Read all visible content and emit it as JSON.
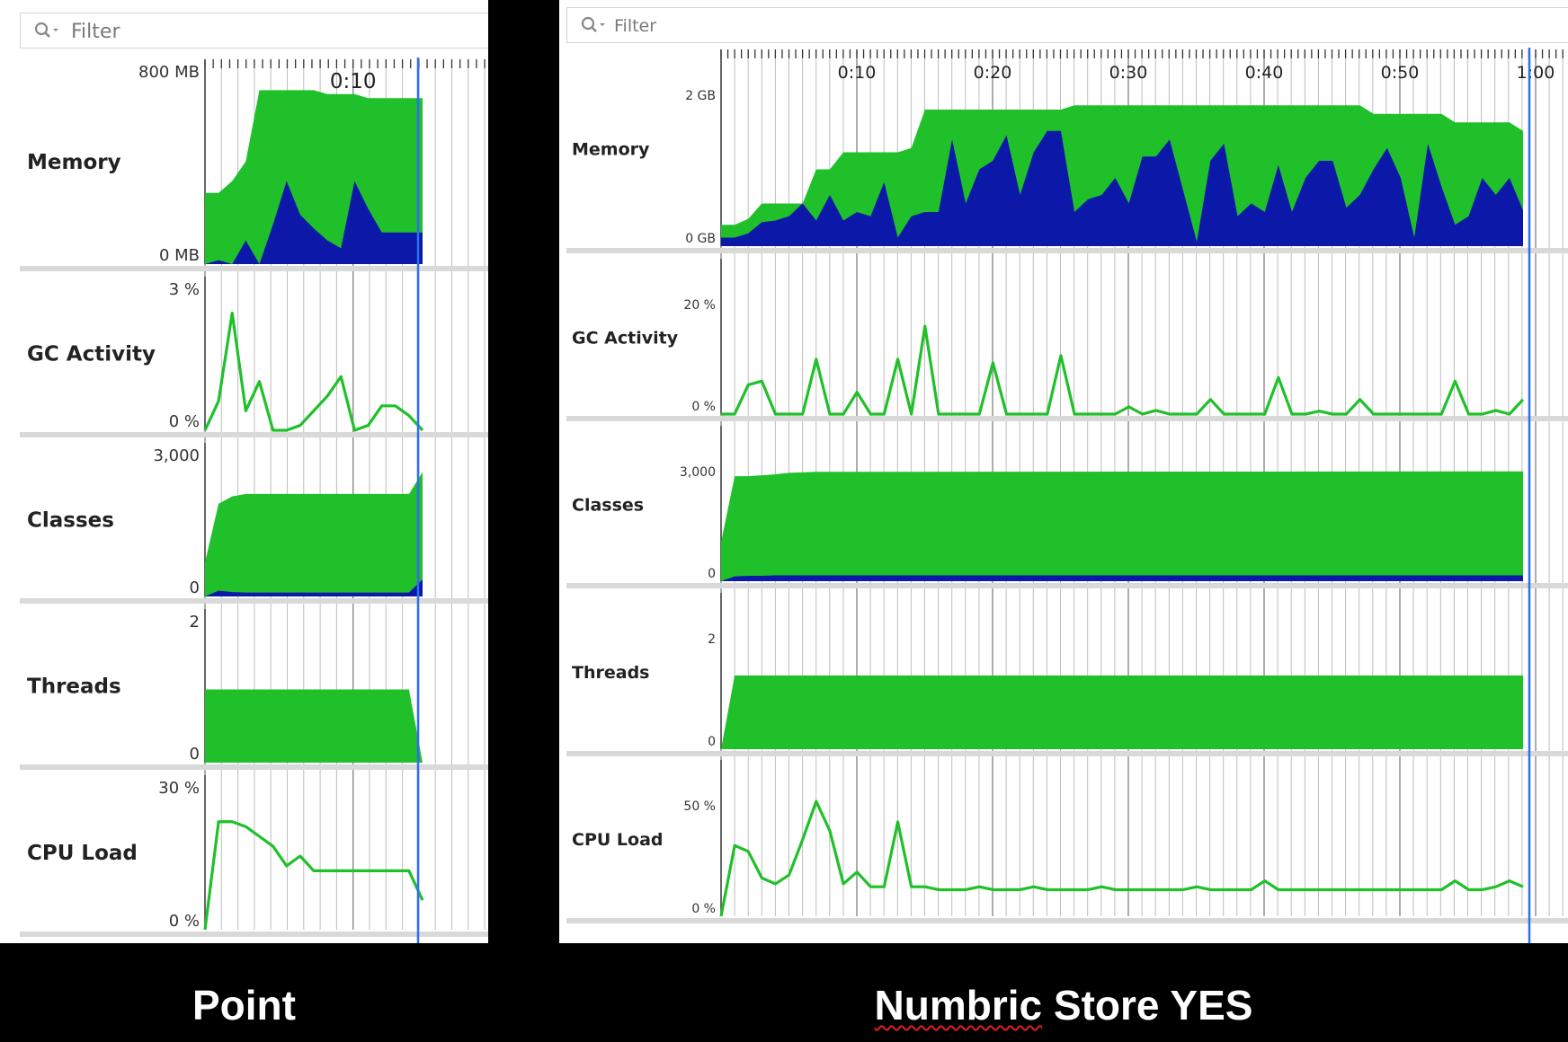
{
  "colors": {
    "green": "#20c02a",
    "blue": "#0b18a8",
    "cursor": "#2f6ef0",
    "grid": "#bdbdbd",
    "sep": "#d9d9d9"
  },
  "left": {
    "filter_placeholder": "Filter",
    "time_labels": [
      "0:10"
    ],
    "caption": "Point",
    "charts": [
      {
        "name": "Memory",
        "top_label": "800 MB",
        "bottom_label": "0 MB",
        "type": "area",
        "x": [
          0,
          2,
          4,
          6,
          8,
          10,
          12,
          14,
          16,
          18,
          20,
          22,
          24,
          26,
          28,
          30,
          32
        ],
        "series": [
          {
            "name": "total",
            "values": [
              360,
              360,
              420,
              520,
              880,
              880,
              880,
              880,
              880,
              860,
              860,
              860,
              840,
              840,
              840,
              840,
              840
            ]
          },
          {
            "name": "used",
            "values": [
              0,
              20,
              0,
              120,
              0,
              200,
              420,
              250,
              180,
              120,
              80,
              420,
              280,
              160,
              160,
              160,
              160
            ]
          }
        ],
        "max": 1000
      },
      {
        "name": "GC Activity",
        "top_label": "3 %",
        "bottom_label": "0 %",
        "type": "line",
        "x": [
          0,
          2,
          4,
          6,
          8,
          10,
          12,
          14,
          16,
          18,
          20,
          22,
          24,
          26,
          28,
          30,
          32
        ],
        "values": [
          0,
          0.6,
          2.4,
          0.4,
          1,
          0,
          0,
          0.1,
          0.4,
          0.7,
          1.1,
          0,
          0.1,
          0.5,
          0.5,
          0.3,
          0
        ],
        "max": 3
      },
      {
        "name": "Classes",
        "top_label": "3,000",
        "bottom_label": "0",
        "type": "area",
        "x": [
          0,
          2,
          4,
          6,
          8,
          10,
          12,
          14,
          16,
          18,
          20,
          22,
          24,
          26,
          28,
          30,
          32
        ],
        "series": [
          {
            "name": "loaded",
            "values": [
              700,
              1900,
              2050,
              2100,
              2100,
              2100,
              2100,
              2100,
              2100,
              2100,
              2100,
              2100,
              2100,
              2100,
              2100,
              2100,
              2550
            ]
          },
          {
            "name": "unloaded",
            "values": [
              0,
              120,
              90,
              80,
              80,
              80,
              80,
              80,
              80,
              80,
              80,
              80,
              80,
              80,
              80,
              80,
              350
            ]
          }
        ],
        "max": 3000
      },
      {
        "name": "Threads",
        "top_label": "2",
        "bottom_label": "0",
        "type": "area",
        "x": [
          0,
          30,
          32
        ],
        "series": [
          {
            "name": "threads",
            "values": [
              1,
              1,
              0
            ]
          }
        ],
        "max": 2
      },
      {
        "name": "CPU Load",
        "top_label": "30 %",
        "bottom_label": "0 %",
        "type": "line",
        "x": [
          0,
          2,
          4,
          6,
          8,
          10,
          12,
          14,
          16,
          18,
          20,
          22,
          24,
          26,
          28,
          30,
          32
        ],
        "values": [
          0,
          22,
          22,
          21,
          19,
          17,
          13,
          15,
          12,
          12,
          12,
          12,
          12,
          12,
          12,
          12,
          6
        ],
        "max": 30
      }
    ]
  },
  "right": {
    "filter_placeholder": "Filter",
    "time_labels": [
      "0:10",
      "0:20",
      "0:30",
      "0:40",
      "0:50",
      "1:00"
    ],
    "caption": "Numbric Store YES",
    "caption_misspelled": "Numbric",
    "caption_rest": " Store YES",
    "charts": [
      {
        "name": "Memory",
        "top_label": "2 GB",
        "bottom_label": "0 GB",
        "type": "area",
        "x": [
          0,
          1,
          2,
          3,
          4,
          5,
          6,
          7,
          8,
          9,
          10,
          11,
          12,
          13,
          14,
          15,
          16,
          17,
          18,
          19,
          20,
          21,
          22,
          23,
          24,
          25,
          26,
          27,
          28,
          29,
          30,
          31,
          32,
          33,
          34,
          35,
          36,
          37,
          38,
          39,
          40,
          41,
          42,
          43,
          44,
          45,
          46,
          47,
          48,
          49,
          50,
          51,
          52,
          53,
          54,
          55,
          56,
          57,
          58,
          59
        ],
        "series": [
          {
            "name": "total",
            "values": [
              0.25,
              0.25,
              0.32,
              0.5,
              0.5,
              0.5,
              0.5,
              0.9,
              0.9,
              1.1,
              1.1,
              1.1,
              1.1,
              1.1,
              1.15,
              1.6,
              1.6,
              1.6,
              1.6,
              1.6,
              1.6,
              1.6,
              1.6,
              1.6,
              1.6,
              1.6,
              1.65,
              1.65,
              1.65,
              1.65,
              1.65,
              1.65,
              1.65,
              1.65,
              1.65,
              1.65,
              1.65,
              1.65,
              1.65,
              1.65,
              1.65,
              1.65,
              1.65,
              1.65,
              1.65,
              1.65,
              1.65,
              1.65,
              1.55,
              1.55,
              1.55,
              1.55,
              1.55,
              1.55,
              1.45,
              1.45,
              1.45,
              1.45,
              1.45,
              1.35
            ]
          },
          {
            "name": "used",
            "values": [
              0.1,
              0.1,
              0.15,
              0.28,
              0.3,
              0.35,
              0.5,
              0.3,
              0.6,
              0.3,
              0.4,
              0.35,
              0.75,
              0.1,
              0.35,
              0.4,
              0.4,
              1.25,
              0.5,
              0.9,
              1,
              1.3,
              0.6,
              1.1,
              1.35,
              1.35,
              0.4,
              0.55,
              0.6,
              0.8,
              0.5,
              1.05,
              1.05,
              1.25,
              0.65,
              0.05,
              1,
              1.2,
              0.35,
              0.5,
              0.4,
              0.95,
              0.4,
              0.8,
              1,
              1,
              0.45,
              0.6,
              0.9,
              1.15,
              0.8,
              0.1,
              1.2,
              0.7,
              0.25,
              0.35,
              0.8,
              0.6,
              0.8,
              0.42
            ]
          }
        ],
        "max": 2.2
      },
      {
        "name": "GC Activity",
        "top_label": "20 %",
        "bottom_label": "0 %",
        "type": "line",
        "x": [
          0,
          1,
          2,
          3,
          4,
          5,
          6,
          7,
          8,
          9,
          10,
          11,
          12,
          13,
          14,
          15,
          16,
          17,
          18,
          19,
          20,
          21,
          22,
          23,
          24,
          25,
          26,
          27,
          28,
          29,
          30,
          31,
          32,
          33,
          34,
          35,
          36,
          37,
          38,
          39,
          40,
          41,
          42,
          43,
          44,
          45,
          46,
          47,
          48,
          49,
          50,
          51,
          52,
          53,
          54,
          55,
          56,
          57,
          58,
          59
        ],
        "values": [
          0,
          0,
          4,
          4.5,
          0,
          0,
          0,
          7.5,
          0,
          0,
          3,
          0,
          0,
          7.5,
          0,
          12,
          0,
          0,
          0,
          0,
          7,
          0,
          0,
          0,
          0,
          8,
          0,
          0,
          0,
          0,
          1,
          0,
          0.5,
          0,
          0,
          0,
          2,
          0,
          0,
          0,
          0,
          5,
          0,
          0,
          0.4,
          0,
          0,
          2,
          0,
          0,
          0,
          0,
          0,
          0,
          4.5,
          0,
          0,
          0.5,
          0,
          2
        ],
        "max": 20
      },
      {
        "name": "Classes",
        "top_label": "3,000",
        "bottom_label": "0",
        "type": "area",
        "x": [
          0,
          1,
          2,
          3,
          4,
          5,
          6,
          7,
          8,
          9,
          59
        ],
        "series": [
          {
            "name": "loaded",
            "values": [
              800,
              2150,
              2150,
              2170,
              2190,
              2220,
              2230,
              2240,
              2240,
              2240,
              2250
            ]
          },
          {
            "name": "unloaded",
            "values": [
              0,
              100,
              110,
              110,
              120,
              120,
              120,
              120,
              120,
              120,
              120
            ]
          }
        ],
        "max": 3000
      },
      {
        "name": "Threads",
        "top_label": "2",
        "bottom_label": "0",
        "type": "area",
        "x": [
          0,
          1,
          59
        ],
        "series": [
          {
            "name": "threads",
            "values": [
              0,
              1,
              1
            ]
          }
        ],
        "max": 2
      },
      {
        "name": "CPU Load",
        "top_label": "50 %",
        "bottom_label": "0 %",
        "type": "line",
        "x": [
          0,
          1,
          2,
          3,
          4,
          5,
          6,
          7,
          8,
          9,
          10,
          11,
          12,
          13,
          14,
          15,
          16,
          17,
          18,
          19,
          20,
          21,
          22,
          23,
          24,
          25,
          26,
          27,
          28,
          29,
          30,
          31,
          32,
          33,
          34,
          35,
          36,
          37,
          38,
          39,
          40,
          41,
          42,
          43,
          44,
          45,
          46,
          47,
          48,
          49,
          50,
          51,
          52,
          53,
          54,
          55,
          56,
          57,
          58,
          59
        ],
        "values": [
          0,
          24,
          22,
          13,
          11,
          14,
          26,
          39,
          29,
          11,
          15,
          10,
          10,
          32,
          10,
          10,
          9,
          9,
          9,
          10,
          9,
          9,
          9,
          10,
          9,
          9,
          9,
          9,
          10,
          9,
          9,
          9,
          9,
          9,
          9,
          10,
          9,
          9,
          9,
          9,
          12,
          9,
          9,
          9,
          9,
          9,
          9,
          9,
          9,
          9,
          9,
          9,
          9,
          9,
          12,
          9,
          9,
          10,
          12,
          10
        ],
        "max": 50
      }
    ]
  }
}
